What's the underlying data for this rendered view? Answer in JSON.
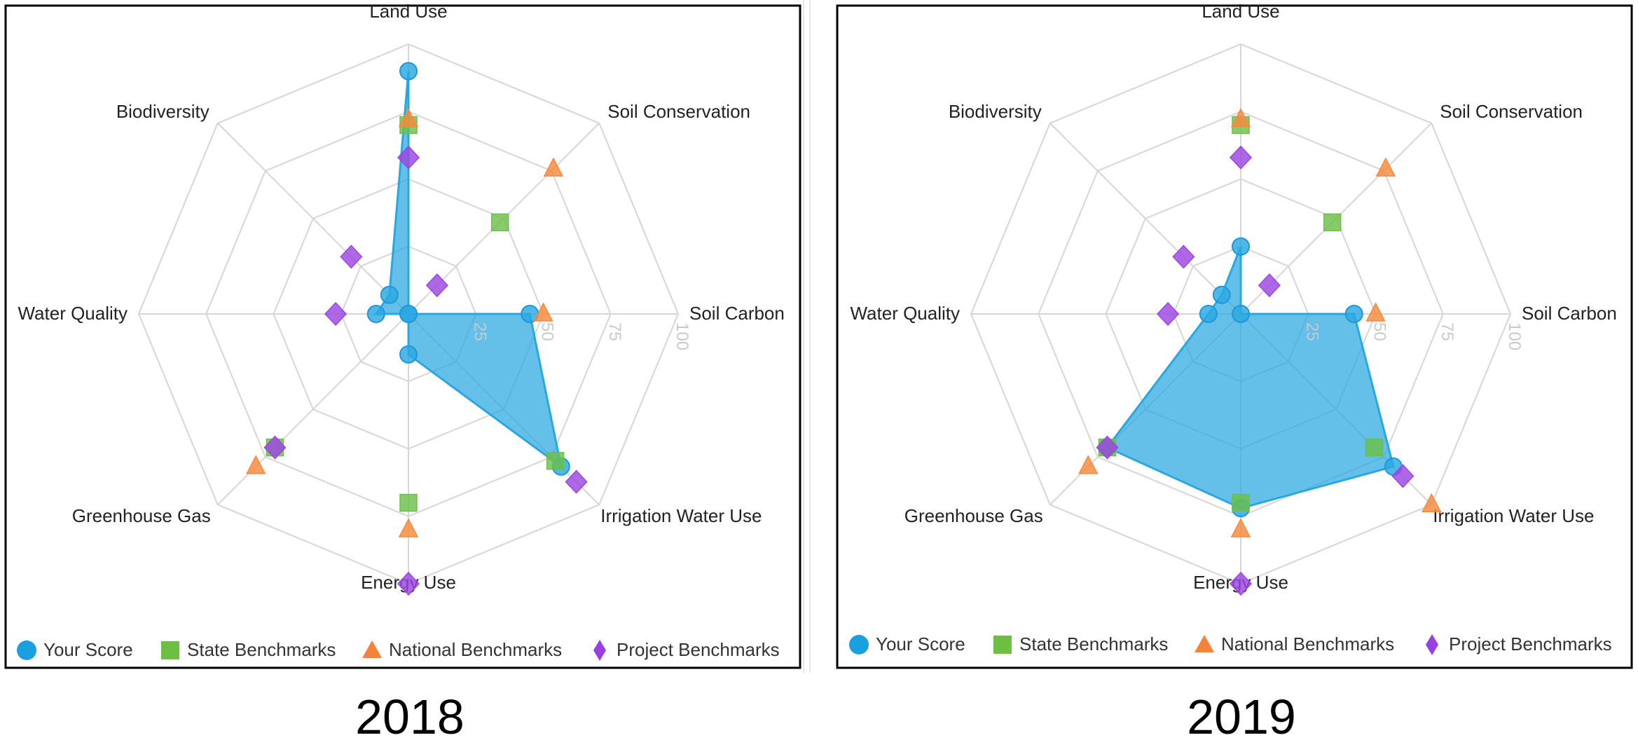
{
  "chart_data": [
    {
      "type": "radar",
      "year_label": "2018",
      "axes": [
        "Land Use",
        "Soil Conservation",
        "Soil Carbon",
        "Irrigation Water Use",
        "Energy Use",
        "Greenhouse Gas",
        "Water Quality",
        "Biodiversity"
      ],
      "radial_range": [
        0,
        100
      ],
      "radial_ticks": [
        "25",
        "50",
        "75",
        "100"
      ],
      "grid": true,
      "legend_position": "bottom",
      "series": [
        {
          "name": "Your Score",
          "marker": "circle",
          "color": "#29a8e0",
          "filled": true,
          "values": [
            90,
            0,
            45,
            80,
            15,
            0,
            12,
            10
          ]
        },
        {
          "name": "State Benchmarks",
          "marker": "square",
          "color": "#6cc04a",
          "filled": false,
          "values": [
            70,
            48,
            null,
            77,
            70,
            70,
            null,
            null
          ]
        },
        {
          "name": "National Benchmarks",
          "marker": "triangle",
          "color": "#f58a3d",
          "filled": false,
          "values": [
            72,
            76,
            50,
            null,
            80,
            80,
            null,
            null
          ]
        },
        {
          "name": "Project Benchmarks",
          "marker": "diamond",
          "color": "#9c46e0",
          "filled": false,
          "values": [
            58,
            15,
            null,
            88,
            100,
            70,
            27,
            30
          ]
        }
      ]
    },
    {
      "type": "radar",
      "year_label": "2019",
      "axes": [
        "Land Use",
        "Soil Conservation",
        "Soil Carbon",
        "Irrigation Water Use",
        "Energy Use",
        "Greenhouse Gas",
        "Water Quality",
        "Biodiversity"
      ],
      "radial_range": [
        0,
        100
      ],
      "radial_ticks": [
        "25",
        "50",
        "75",
        "100"
      ],
      "grid": true,
      "legend_position": "bottom",
      "series": [
        {
          "name": "Your Score",
          "marker": "circle",
          "color": "#29a8e0",
          "filled": true,
          "values": [
            25,
            0,
            42,
            80,
            72,
            70,
            12,
            10
          ]
        },
        {
          "name": "State Benchmarks",
          "marker": "square",
          "color": "#6cc04a",
          "filled": false,
          "values": [
            70,
            48,
            null,
            70,
            70,
            70,
            null,
            null
          ]
        },
        {
          "name": "National Benchmarks",
          "marker": "triangle",
          "color": "#f58a3d",
          "filled": false,
          "values": [
            72,
            76,
            50,
            100,
            80,
            80,
            null,
            null
          ]
        },
        {
          "name": "Project Benchmarks",
          "marker": "diamond",
          "color": "#9c46e0",
          "filled": false,
          "values": [
            58,
            15,
            null,
            85,
            100,
            70,
            27,
            30
          ]
        }
      ]
    }
  ]
}
